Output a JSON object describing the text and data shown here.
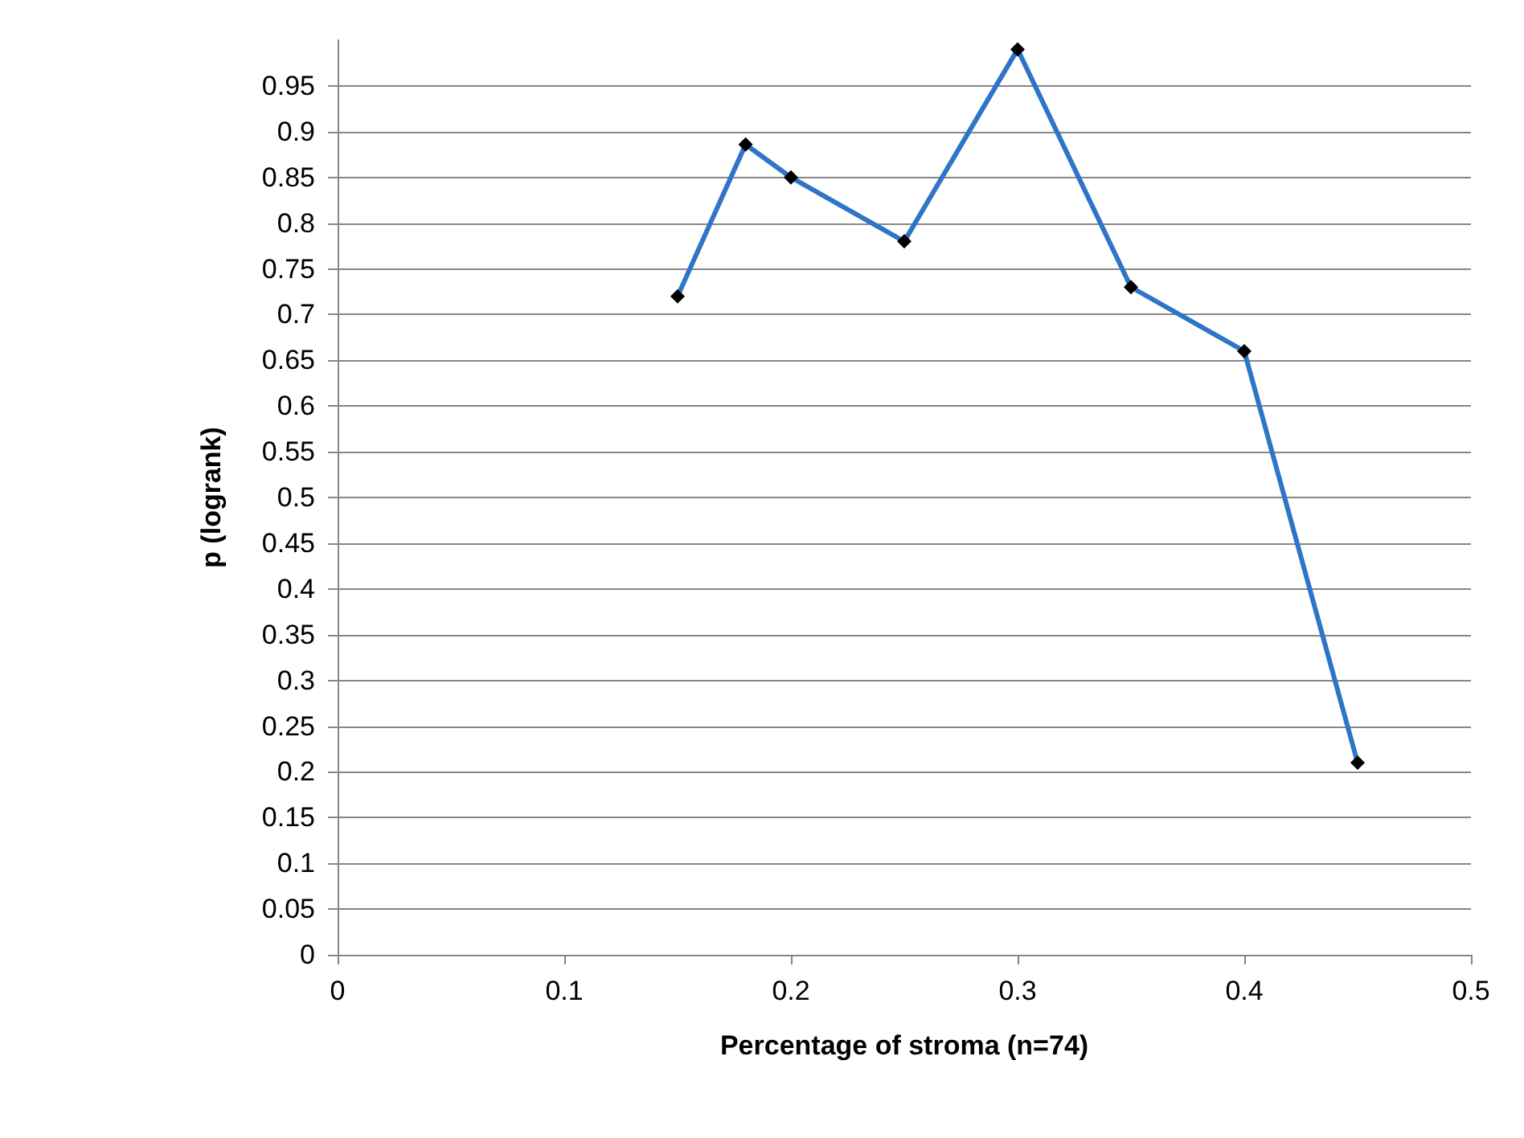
{
  "chart_data": {
    "type": "line",
    "xlabel": "Percentage of stroma (n=74)",
    "ylabel": "p (logrank)",
    "x": [
      0.15,
      0.18,
      0.2,
      0.25,
      0.3,
      0.35,
      0.4,
      0.45
    ],
    "series": [
      {
        "color": "#2e75c8",
        "values": [
          0.72,
          0.886,
          0.85,
          0.78,
          0.99,
          0.73,
          0.66,
          0.21
        ]
      }
    ],
    "xlim": [
      0,
      0.5
    ],
    "xticks": [
      0,
      0.1,
      0.2,
      0.3,
      0.4,
      0.5
    ],
    "ylim": [
      0,
      1
    ],
    "yticks": [
      0,
      0.05,
      0.1,
      0.15,
      0.2,
      0.25,
      0.3,
      0.35,
      0.4,
      0.45,
      0.5,
      0.55,
      0.6,
      0.65,
      0.7,
      0.75,
      0.8,
      0.85,
      0.9,
      0.95
    ],
    "grid": "y",
    "marker": "diamond",
    "line_style": "solid"
  }
}
